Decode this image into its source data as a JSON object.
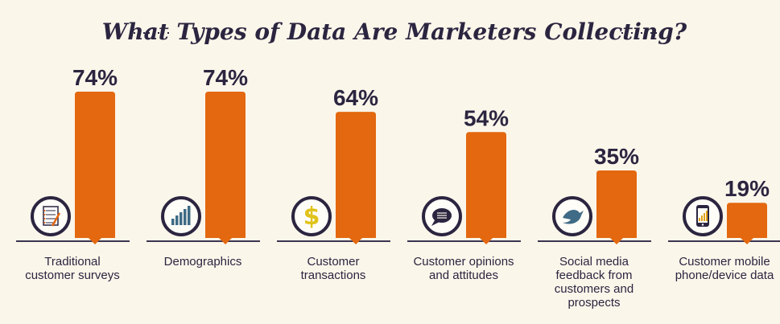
{
  "chart_data": {
    "type": "bar",
    "title": "What Types of Data Are Marketers Collecting?",
    "categories": [
      [
        "Traditional",
        "customer surveys"
      ],
      [
        "Demographics"
      ],
      [
        "Customer",
        "transactions"
      ],
      [
        "Customer opinions",
        "and attitudes"
      ],
      [
        "Social media",
        "feedback from",
        "customers and",
        "prospects"
      ],
      [
        "Customer mobile",
        "phone/device data"
      ]
    ],
    "values": [
      74,
      74,
      64,
      54,
      35,
      19
    ],
    "value_labels": [
      "74%",
      "74%",
      "64%",
      "54%",
      "35%",
      "19%"
    ],
    "icons": [
      "survey-icon",
      "demographics-chart-icon",
      "dollar-icon",
      "speech-bubble-icon",
      "twitter-bird-icon",
      "mobile-phone-icon"
    ],
    "xlabel": "",
    "ylabel": "",
    "ylim": [
      0,
      74
    ],
    "grid": false,
    "legend": "none",
    "colors": {
      "bar": "#e3680f",
      "text": "#2b2540",
      "icon_ring": "#2b2540",
      "background": "#fbf6ea",
      "dollar": "#e0c31a"
    }
  }
}
